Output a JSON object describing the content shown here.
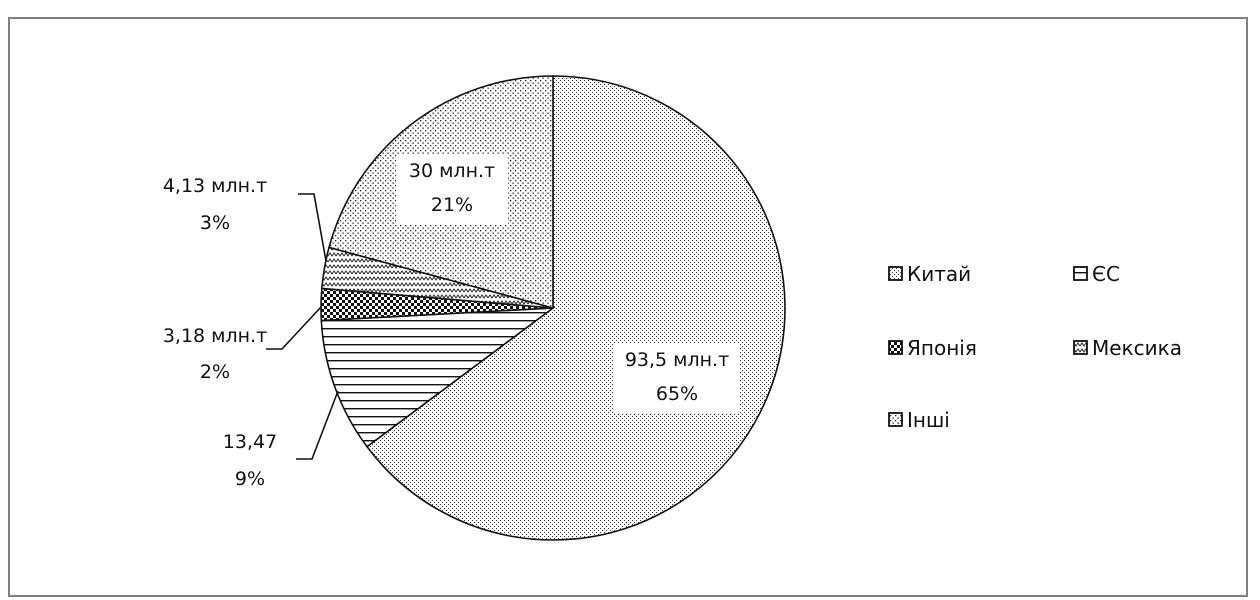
{
  "chart_data": {
    "type": "pie",
    "slices": [
      {
        "name": "Китай",
        "value": 93.5,
        "percent": 65,
        "value_label": "93,5 млн.т",
        "percent_label": "65%",
        "pattern": "fine-dots"
      },
      {
        "name": "ЄС",
        "value": 13.47,
        "percent": 9,
        "value_label": "13,47",
        "percent_label": "9%",
        "pattern": "horizontal-lines"
      },
      {
        "name": "Японія",
        "value": 3.18,
        "percent": 2,
        "value_label": "3,18 млн.т",
        "percent_label": "2%",
        "pattern": "checker"
      },
      {
        "name": "Мексика",
        "value": 4.13,
        "percent": 3,
        "value_label": "4,13 млн.т",
        "percent_label": "3%",
        "pattern": "zigzag"
      },
      {
        "name": "Інші",
        "value": 30,
        "percent": 21,
        "value_label": "30 млн.т",
        "percent_label": "21%",
        "pattern": "coarse-dots"
      }
    ],
    "legend": {
      "placement": "right",
      "items": [
        "Китай",
        "ЄС",
        "Японія",
        "Мексика",
        "Інші"
      ]
    },
    "colors": {
      "line": "#111111",
      "frame": "#7f7f7f",
      "background": "#ffffff"
    }
  }
}
